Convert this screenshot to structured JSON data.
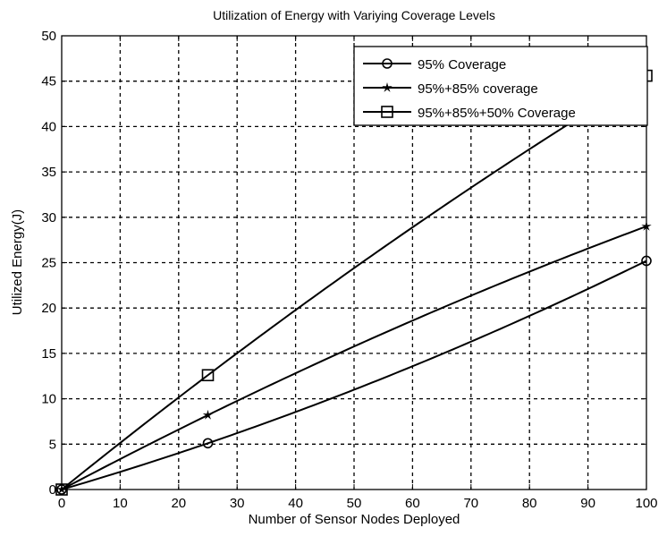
{
  "chart_data": {
    "type": "line",
    "title": "Utilization of Energy with Variying Coverage Levels",
    "xlabel": "Number of Sensor Nodes Deployed",
    "ylabel": "Utilized Energy(J)",
    "xlim": [
      0,
      100
    ],
    "ylim": [
      0,
      50
    ],
    "xticks": [
      0,
      10,
      20,
      30,
      40,
      50,
      60,
      70,
      80,
      90,
      100
    ],
    "yticks": [
      0,
      5,
      10,
      15,
      20,
      25,
      30,
      35,
      40,
      45,
      50
    ],
    "grid": true,
    "legend_position": "top-right",
    "x": [
      0,
      25,
      100
    ],
    "series": [
      {
        "name": "95% Coverage",
        "marker": "circle",
        "values": [
          0,
          5.1,
          25.2
        ]
      },
      {
        "name": "95%+85% coverage",
        "marker": "star",
        "values": [
          0,
          8.2,
          29.0
        ]
      },
      {
        "name": "95%+85%+50% Coverage",
        "marker": "square",
        "values": [
          0,
          12.6,
          45.6
        ]
      }
    ],
    "line_color": "#000000"
  }
}
